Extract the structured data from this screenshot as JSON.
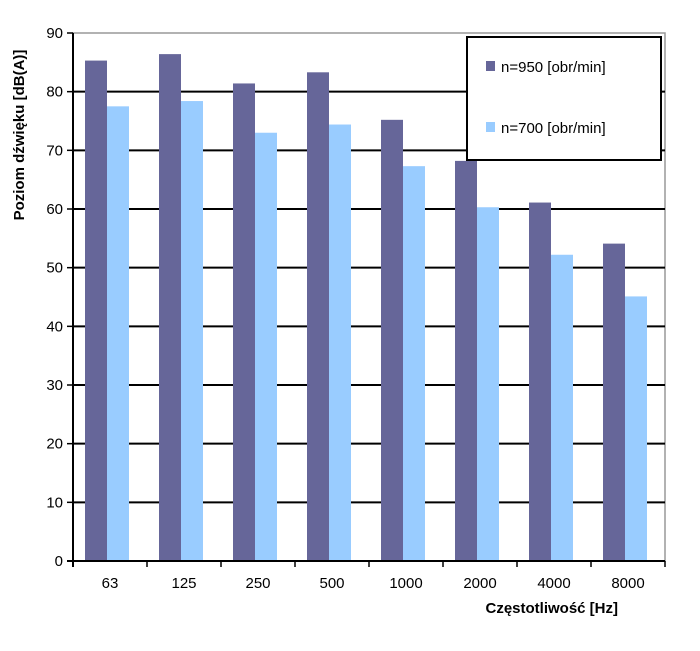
{
  "chart_data": {
    "type": "bar",
    "title": "",
    "xlabel": "Częstotliwość [Hz]",
    "ylabel": "Poziom dźwięku [dB(A)]",
    "categories": [
      "63",
      "125",
      "250",
      "500",
      "1000",
      "2000",
      "4000",
      "8000"
    ],
    "series": [
      {
        "name": "n=950 [obr/min]",
        "color": "#666699",
        "values": [
          85.3,
          86.4,
          81.4,
          83.3,
          75.2,
          68.2,
          61.1,
          54.1
        ]
      },
      {
        "name": "n=700 [obr/min]",
        "color": "#99CCFF",
        "values": [
          77.5,
          78.4,
          73.0,
          74.4,
          67.3,
          60.3,
          52.2,
          45.1
        ]
      }
    ],
    "ylim": [
      0,
      90
    ],
    "yticks": [
      0,
      10,
      20,
      30,
      40,
      50,
      60,
      70,
      80,
      90
    ],
    "grid": true,
    "legend_position": "top-right"
  }
}
